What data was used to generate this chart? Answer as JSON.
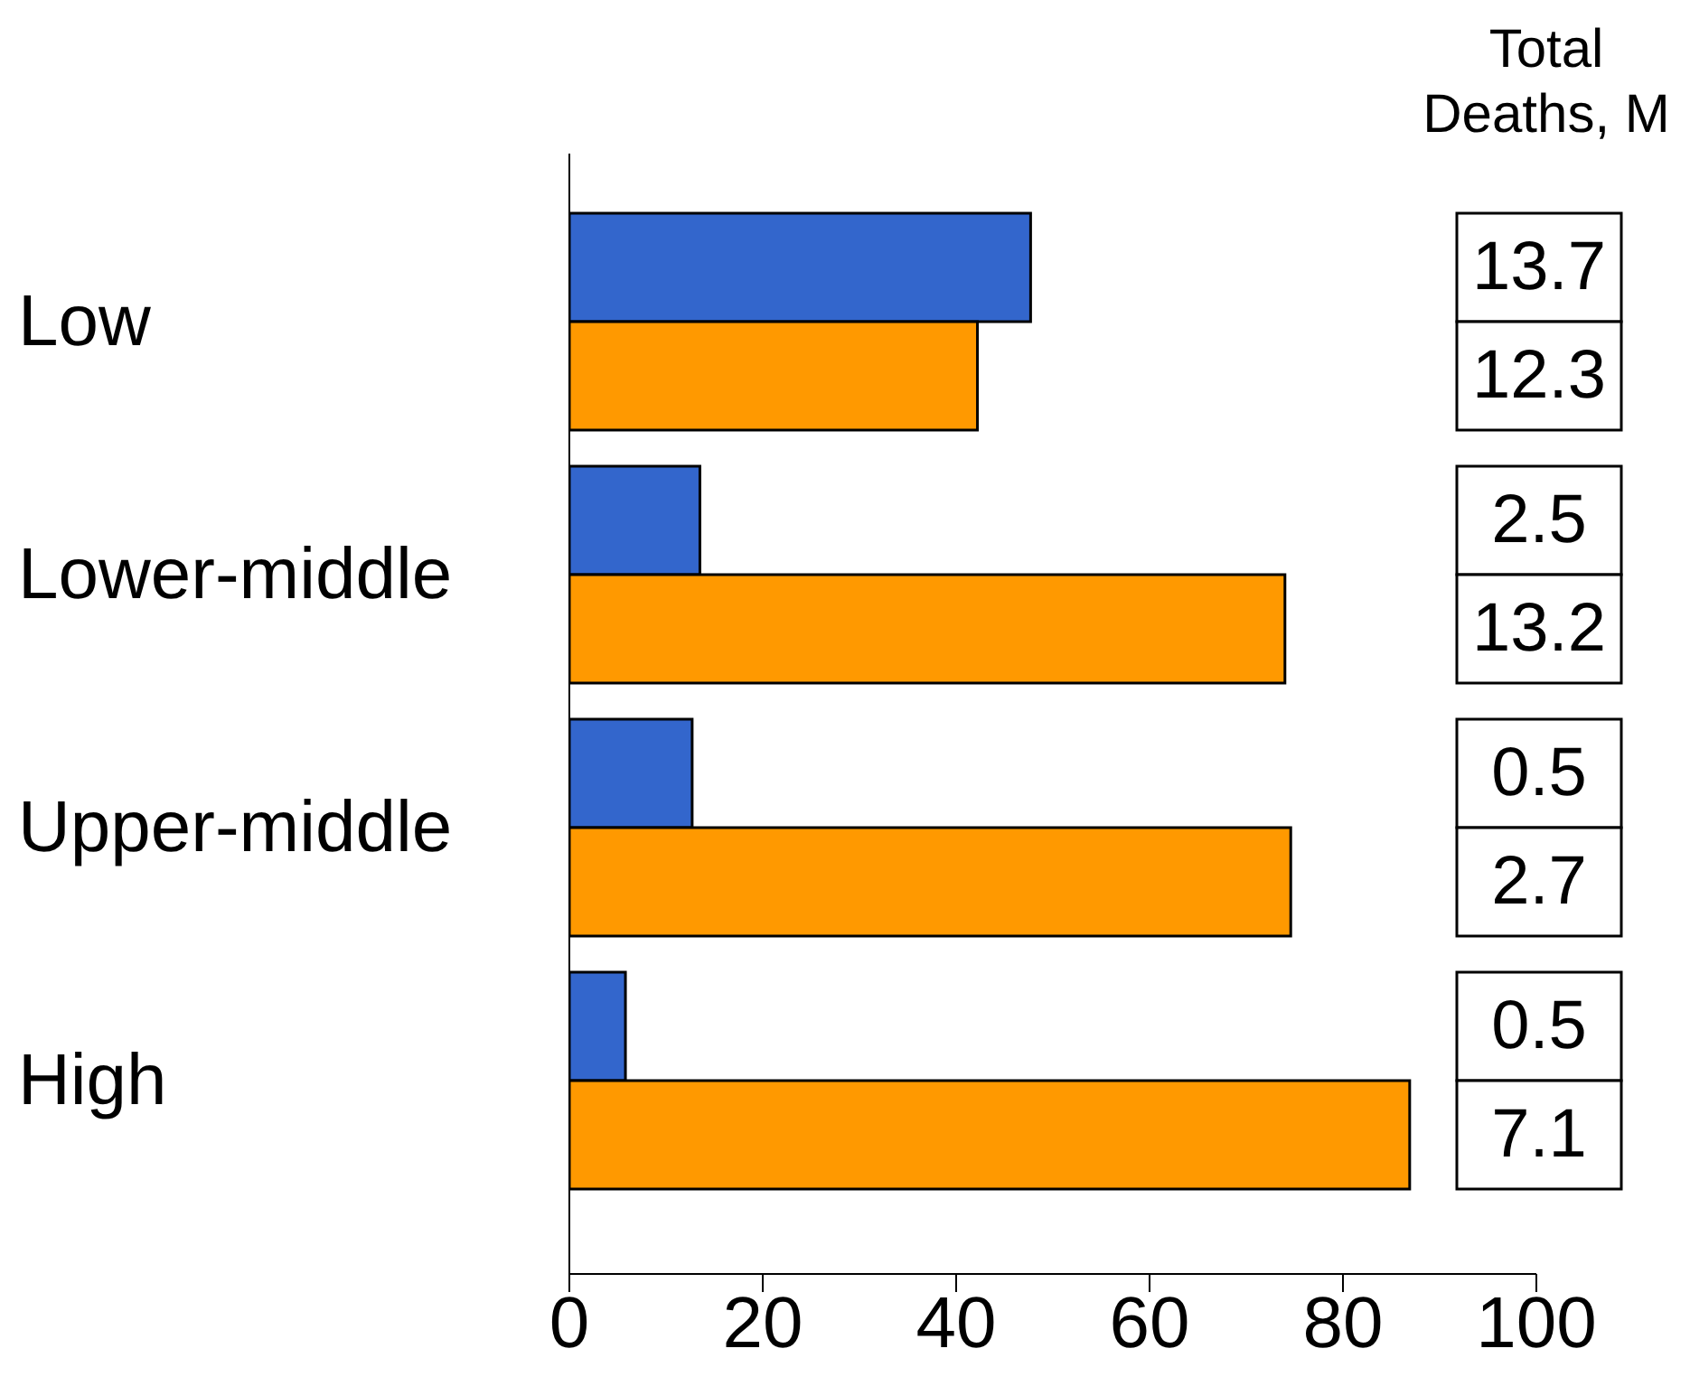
{
  "chart_data": [
    {
      "type": "bar",
      "orientation": "horizontal",
      "categories": [
        "Low",
        "Lower-middle",
        "Upper-middle",
        "High"
      ],
      "series": [
        {
          "color": "#3366cc",
          "values": [
            47.7,
            13.5,
            12.7,
            5.8
          ]
        },
        {
          "color": "#ff9900",
          "values": [
            42.2,
            74.0,
            74.6,
            86.9
          ]
        }
      ],
      "xlim": [
        0,
        100
      ],
      "xticks": [
        0,
        20,
        40,
        60,
        80,
        100
      ]
    },
    {
      "type": "other",
      "title": "Total Deaths, M",
      "annotations": [
        "13.7",
        "12.3",
        "2.5",
        "13.2",
        "0.5",
        "2.7",
        "0.5",
        "7.1"
      ]
    }
  ]
}
